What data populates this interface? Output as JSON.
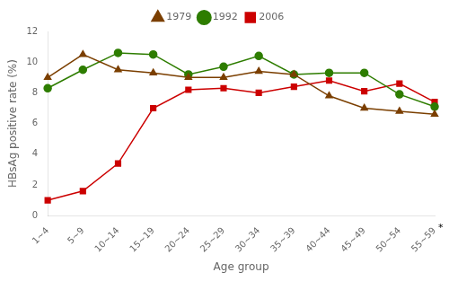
{
  "chart_data": {
    "type": "line",
    "categories": [
      "1~4",
      "5~9",
      "10~14",
      "15~19",
      "20~24",
      "25~29",
      "30~34",
      "35~39",
      "40~44",
      "45~49",
      "50~54",
      "55~59"
    ],
    "series": [
      {
        "name": "1979",
        "color": "#7B3F00",
        "marker": "triangle",
        "line_style": "solid",
        "values": [
          9.0,
          10.5,
          9.5,
          9.3,
          9.0,
          9.0,
          9.4,
          9.2,
          7.8,
          7.0,
          6.8,
          6.6
        ]
      },
      {
        "name": "1992",
        "color": "#2E7D00",
        "marker": "circle",
        "line_style": "solid",
        "values": [
          8.3,
          9.5,
          10.6,
          10.5,
          9.2,
          9.7,
          10.4,
          9.2,
          9.3,
          9.3,
          7.9,
          7.1
        ]
      },
      {
        "name": "2006",
        "color": "#CC0000",
        "marker": "square",
        "line_style": "solid",
        "values": [
          1.0,
          1.6,
          3.4,
          7.0,
          8.2,
          8.3,
          8.0,
          8.4,
          8.8,
          8.1,
          8.6,
          7.4
        ]
      }
    ],
    "xlabel": "Age group",
    "ylabel": "HBsAg positive rate (%)",
    "ylim": [
      0,
      12
    ],
    "yticks": [
      0,
      2,
      4,
      6,
      8,
      10,
      12
    ],
    "grid": false,
    "legend": "top",
    "annotations": [
      "*"
    ]
  }
}
